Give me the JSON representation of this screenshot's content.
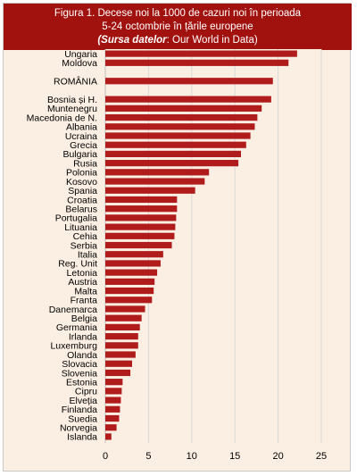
{
  "header": {
    "line1": "Figura 1. Decese noi la 1000 de cazuri noi în perioada",
    "line2": "5-24 octombrie în țările europene",
    "source_label": "(Sursa datelor",
    "source_text": ": Our World in Data)"
  },
  "colors": {
    "bar": "#b01c1c",
    "header": "#a1120f",
    "plot_bg": "#fbeee3",
    "grid": "#d9d9d9"
  },
  "chart_data": {
    "type": "bar",
    "orientation": "horizontal",
    "title": "Figura 1. Decese noi la 1000 de cazuri noi în perioada 5-24 octombrie în țările europene",
    "source": "(Sursa datelor: Our World in Data)",
    "xlim": [
      0,
      25
    ],
    "xticks": [
      0,
      5,
      10,
      15,
      20,
      25
    ],
    "grid": "vertical",
    "categories": [
      "Ungaria",
      "Moldova",
      "",
      "ROMÂNIA",
      "",
      "Bosnia și H.",
      "Muntenegru",
      "Macedonia de N.",
      "Albania",
      "Ucraina",
      "Grecia",
      "Bulgaria",
      "Rusia",
      "Polonia",
      "Kosovo",
      "Spania",
      "Croatia",
      "Belarus",
      "Portugalia",
      "Lituania",
      "Cehia",
      "Serbia",
      "Italia",
      "Reg. Unit",
      "Letonia",
      "Austria",
      "Malta",
      "Franta",
      "Danemarca",
      "Belgia",
      "Germania",
      "Irlanda",
      "Luxemburg",
      "Olanda",
      "Slovacia",
      "Slovenia",
      "Estonia",
      "Cipru",
      "Elveția",
      "Finlanda",
      "Suedia",
      "Norvegia",
      "Islanda"
    ],
    "values": [
      22.2,
      21.2,
      null,
      19.4,
      null,
      19.2,
      18.1,
      17.6,
      17.3,
      16.8,
      16.3,
      15.7,
      15.4,
      12.0,
      11.5,
      10.4,
      8.3,
      8.3,
      8.2,
      8.1,
      8.0,
      7.7,
      6.7,
      6.4,
      6.0,
      5.7,
      5.6,
      5.4,
      4.6,
      4.2,
      4.0,
      3.8,
      3.8,
      3.5,
      3.1,
      2.9,
      2.0,
      1.9,
      1.8,
      1.7,
      1.6,
      1.3,
      0.7
    ]
  }
}
